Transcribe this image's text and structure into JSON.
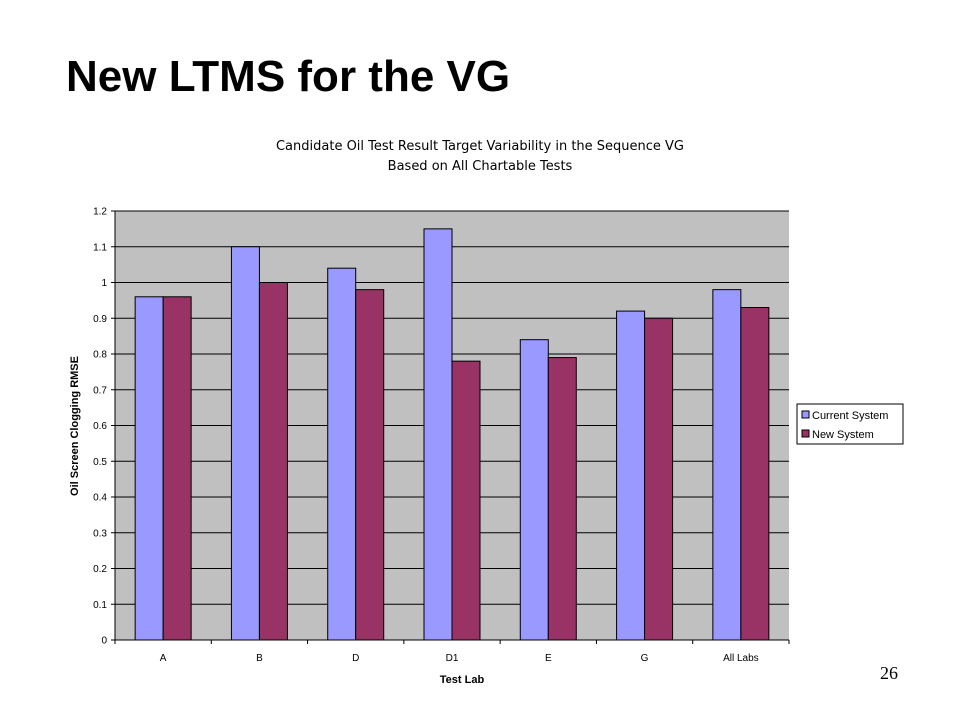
{
  "slide": {
    "title": "New LTMS for the VG",
    "page_number": "26"
  },
  "colors": {
    "plot_background": "#c0c0c0",
    "current_system": "#9999ff",
    "new_system": "#993366",
    "gridline": "#000000",
    "bar_border": "#000000"
  },
  "chart_data": {
    "type": "bar",
    "title": "Candidate Oil Test Result Target Variability in the Sequence VG",
    "subtitle": "Based on All Chartable Tests",
    "xlabel": "Test Lab",
    "ylabel": "Oil Screen Clogging RMSE",
    "ylim": [
      0,
      1.2
    ],
    "ytick_step": 0.1,
    "yticks": [
      "0",
      "0.1",
      "0.2",
      "0.3",
      "0.4",
      "0.5",
      "0.6",
      "0.7",
      "0.8",
      "0.9",
      "1",
      "1.1",
      "1.2"
    ],
    "grid": true,
    "legend_position": "right",
    "categories": [
      "A",
      "B",
      "D",
      "D1",
      "E",
      "G",
      "All Labs"
    ],
    "series": [
      {
        "name": "Current System",
        "values": [
          0.96,
          1.1,
          1.04,
          1.15,
          0.84,
          0.92,
          0.98
        ]
      },
      {
        "name": "New System",
        "values": [
          0.96,
          1.0,
          0.98,
          0.78,
          0.79,
          0.9,
          0.93
        ]
      }
    ]
  }
}
